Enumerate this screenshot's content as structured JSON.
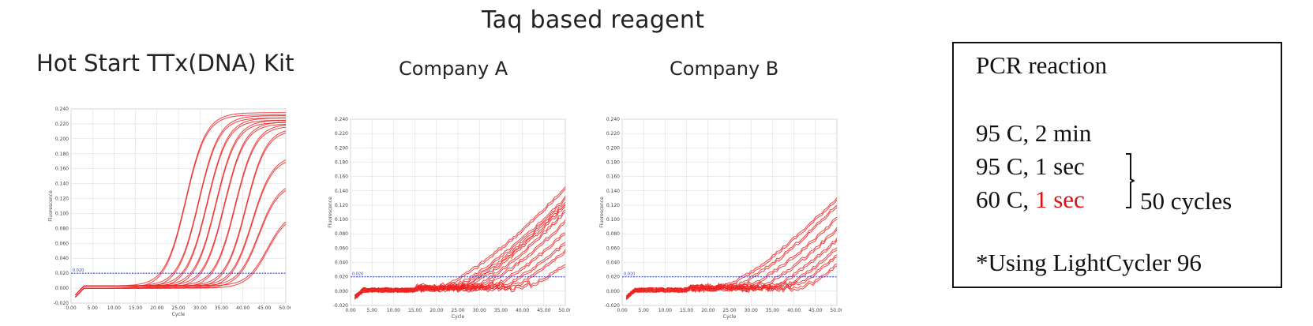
{
  "page_title": "Taq based reagent",
  "chart_data": [
    {
      "type": "line",
      "title": "Hot Start TTx(DNA) Kit",
      "xlabel": "Cycle",
      "ylabel": "Fluorescence",
      "xlim": [
        0,
        50
      ],
      "ylim": [
        -0.02,
        0.24
      ],
      "xticks": [
        "0.00",
        "5.00",
        "10.00",
        "15.00",
        "20.00",
        "25.00",
        "30.00",
        "35.00",
        "40.00",
        "45.00",
        "50.00"
      ],
      "yticks": [
        "-0.020",
        "0.000",
        "0.020",
        "0.040",
        "0.060",
        "0.080",
        "0.100",
        "0.120",
        "0.140",
        "0.160",
        "0.180",
        "0.200",
        "0.220",
        "0.240"
      ],
      "threshold": 0.02,
      "threshold_label": "0.020",
      "grid": true,
      "curves": [
        {
          "ct": 21.5,
          "plateau": 0.232
        },
        {
          "ct": 24.5,
          "plateau": 0.228
        },
        {
          "ct": 26.5,
          "plateau": 0.225
        },
        {
          "ct": 28.5,
          "plateau": 0.222
        },
        {
          "ct": 30.5,
          "plateau": 0.22
        },
        {
          "ct": 33.0,
          "plateau": 0.217
        },
        {
          "ct": 35.5,
          "plateau": 0.212
        },
        {
          "ct": 37.0,
          "plateau": 0.175
        },
        {
          "ct": 38.5,
          "plateau": 0.14
        },
        {
          "ct": 40.5,
          "plateau": 0.1
        }
      ]
    },
    {
      "type": "line",
      "title": "Company A",
      "xlabel": "Cycle",
      "ylabel": "Fluorescence",
      "xlim": [
        0,
        50
      ],
      "ylim": [
        -0.02,
        0.24
      ],
      "xticks": [
        "0.00",
        "5.00",
        "10.00",
        "15.00",
        "20.00",
        "25.00",
        "30.00",
        "35.00",
        "40.00",
        "45.00",
        "50.00"
      ],
      "yticks": [
        "-0.020",
        "0.000",
        "0.020",
        "0.040",
        "0.060",
        "0.080",
        "0.100",
        "0.120",
        "0.140",
        "0.160",
        "0.180",
        "0.200",
        "0.220",
        "0.240"
      ],
      "threshold": 0.02,
      "threshold_label": "0.020",
      "grid": true,
      "curves": [
        {
          "ct": 22.0,
          "end": 0.142
        },
        {
          "ct": 24.5,
          "end": 0.128
        },
        {
          "ct": 26.0,
          "end": 0.122
        },
        {
          "ct": 27.5,
          "end": 0.118
        },
        {
          "ct": 29.5,
          "end": 0.11
        },
        {
          "ct": 31.0,
          "end": 0.095
        },
        {
          "ct": 33.5,
          "end": 0.08
        },
        {
          "ct": 36.0,
          "end": 0.065
        },
        {
          "ct": 38.5,
          "end": 0.055
        },
        {
          "ct": 42.0,
          "end": 0.035
        }
      ]
    },
    {
      "type": "line",
      "title": "Company B",
      "xlabel": "Cycle",
      "ylabel": "Fluorescence",
      "xlim": [
        0,
        50
      ],
      "ylim": [
        -0.02,
        0.24
      ],
      "xticks": [
        "0.00",
        "5.00",
        "10.00",
        "15.00",
        "20.00",
        "25.00",
        "30.00",
        "35.00",
        "40.00",
        "45.00",
        "50.00"
      ],
      "yticks": [
        "-0.020",
        "0.000",
        "0.020",
        "0.040",
        "0.060",
        "0.080",
        "0.100",
        "0.120",
        "0.140",
        "0.160",
        "0.180",
        "0.200",
        "0.220",
        "0.240"
      ],
      "threshold": 0.02,
      "threshold_label": "0.020",
      "grid": true,
      "curves": [
        {
          "ct": 24.5,
          "end": 0.128
        },
        {
          "ct": 27.0,
          "end": 0.118
        },
        {
          "ct": 30.0,
          "end": 0.1
        },
        {
          "ct": 33.0,
          "end": 0.085
        },
        {
          "ct": 36.0,
          "end": 0.07
        },
        {
          "ct": 38.5,
          "end": 0.058
        },
        {
          "ct": 41.0,
          "end": 0.048
        },
        {
          "ct": 44.0,
          "end": 0.035
        }
      ]
    }
  ],
  "protocol": {
    "title": "PCR reaction",
    "step1": "95 C, 2 min",
    "step2": "95 C, 1 sec",
    "step3_prefix": "60 C, ",
    "step3_highlight": "1 sec",
    "cycles": "50 cycles",
    "note": "*Using LightCycler 96",
    "highlight_color": "#e01010"
  },
  "colors": {
    "curve": "#ee2222",
    "threshold": "#2233cc",
    "grid": "#d8d8d8"
  }
}
